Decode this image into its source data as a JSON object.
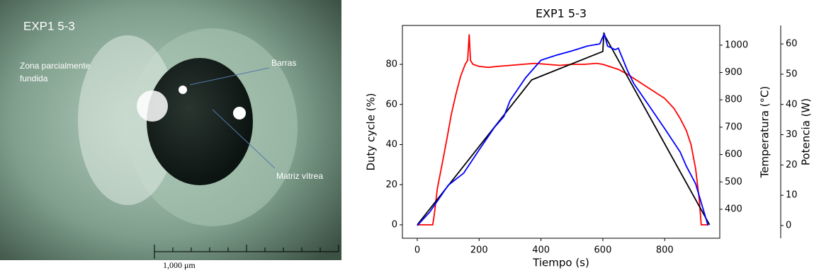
{
  "photo": {
    "title": "EXP1 5-3",
    "labels": [
      "Zona parcialmente fundida",
      "Barras",
      "Matriz vítrea"
    ],
    "scale": "1,000 μm"
  },
  "chart_data": {
    "type": "line",
    "title": "EXP1 5-3",
    "xlabel": "Tiempo (s)",
    "ylabel": "Duty cycle (%)",
    "y2label": "Temperatura (°C)",
    "y3label": "Potencia (W)",
    "xlim": [
      -48,
      978
    ],
    "xticks": [
      0,
      200,
      400,
      600,
      800
    ],
    "ylim": [
      -6.7,
      99.4
    ],
    "yticks": [
      0,
      20,
      40,
      60,
      80
    ],
    "y2lim": [
      294,
      1072
    ],
    "y2ticks": [
      400,
      500,
      600,
      700,
      800,
      900,
      1000
    ],
    "y3lim": [
      -4.2,
      66.1
    ],
    "y3ticks": [
      0,
      10,
      20,
      30,
      40,
      50,
      60
    ],
    "series": [
      {
        "color": "#ff0000",
        "axis": "y",
        "x": [
          0,
          50,
          55,
          65,
          80,
          95,
          110,
          125,
          140,
          155,
          163,
          168,
          172,
          180,
          200,
          230,
          260,
          300,
          340,
          380,
          420,
          460,
          500,
          540,
          580,
          600,
          620,
          650,
          680,
          710,
          740,
          770,
          800,
          830,
          850,
          870,
          885,
          900,
          912,
          918,
          940
        ],
        "values": [
          0,
          0,
          5,
          18,
          30,
          42,
          55,
          65,
          74,
          80,
          82,
          95,
          82,
          80,
          79,
          78.5,
          79,
          79.5,
          80,
          80.5,
          80,
          79.5,
          80,
          80,
          80.5,
          80,
          79,
          77.5,
          75,
          72,
          69,
          66,
          63,
          58,
          53,
          47,
          40,
          28,
          12,
          0,
          0
        ]
      },
      {
        "color": "#000000",
        "axis": "y2",
        "x": [
          0,
          370,
          600,
          603,
          945
        ],
        "values": [
          343,
          873,
          977,
          1041,
          343
        ]
      },
      {
        "color": "#0000ff",
        "axis": "y3",
        "x": [
          0,
          40,
          80,
          100,
          150,
          200,
          250,
          280,
          300,
          350,
          400,
          450,
          500,
          550,
          590,
          600,
          605,
          615,
          640,
          650,
          680,
          700,
          750,
          800,
          850,
          870,
          900,
          940
        ],
        "values": [
          0,
          4.4,
          10.3,
          13.3,
          17.3,
          25,
          32.5,
          36,
          41.3,
          48.8,
          54.6,
          56.3,
          57.7,
          59.3,
          60,
          62.3,
          63.3,
          59.3,
          58.1,
          58.6,
          51.1,
          46.9,
          39.5,
          32,
          24.3,
          19.6,
          13.8,
          0
        ]
      }
    ]
  }
}
